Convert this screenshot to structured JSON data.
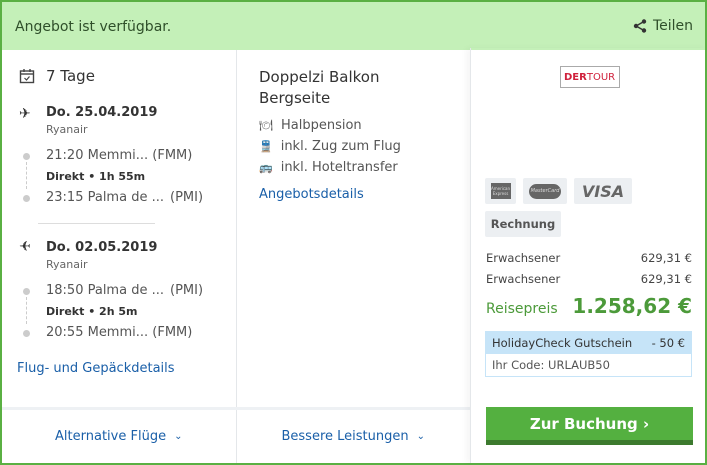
{
  "header": {
    "title": "Angebot ist verfügbar.",
    "share": "Teilen"
  },
  "trip": {
    "duration": "7 Tage",
    "outbound": {
      "date": "Do. 25.04.2019",
      "airline": "Ryanair",
      "dep": "21:20 Memmi... (FMM)",
      "info": "Direkt • 1h 55m",
      "arr": "23:15 Palma de ...",
      "arr_code": "(PMI)"
    },
    "inbound": {
      "date": "Do. 02.05.2019",
      "airline": "Ryanair",
      "dep": "18:50 Palma de ...",
      "dep_code": "(PMI)",
      "info": "Direkt • 2h 5m",
      "arr": "20:55 Memmi... (FMM)"
    },
    "details_link": "Flug- und Gepäckdetails"
  },
  "room": {
    "title_line1": "Doppelzi Balkon",
    "title_line2": "Bergseite",
    "services": [
      "Halbpension",
      "inkl. Zug zum Flug",
      "inkl. Hoteltransfer"
    ],
    "details_link": "Angebotsdetails"
  },
  "bottom": {
    "alt_flights": "Alternative Flüge",
    "better": "Bessere Leistungen"
  },
  "price": {
    "operator": "DERTOUR",
    "payment": [
      "American Express",
      "MasterCard",
      "VISA"
    ],
    "invoice": "Rechnung",
    "lines": [
      {
        "label": "Erwachsener",
        "value": "629,31 €"
      },
      {
        "label": "Erwachsener",
        "value": "629,31 €"
      }
    ],
    "total_label": "Reisepreis",
    "total": "1.258,62 €",
    "voucher_label": "HolidayCheck Gutschein",
    "voucher_value": "- 50 €",
    "voucher_code": "Ihr Code: URLAUB50",
    "book": "Zur Buchung ›"
  },
  "colors": {
    "accent_green": "#54b040",
    "header_bg": "#c4f0b8",
    "link": "#1a5fa8",
    "voucher_bg": "#c6e4f8"
  }
}
